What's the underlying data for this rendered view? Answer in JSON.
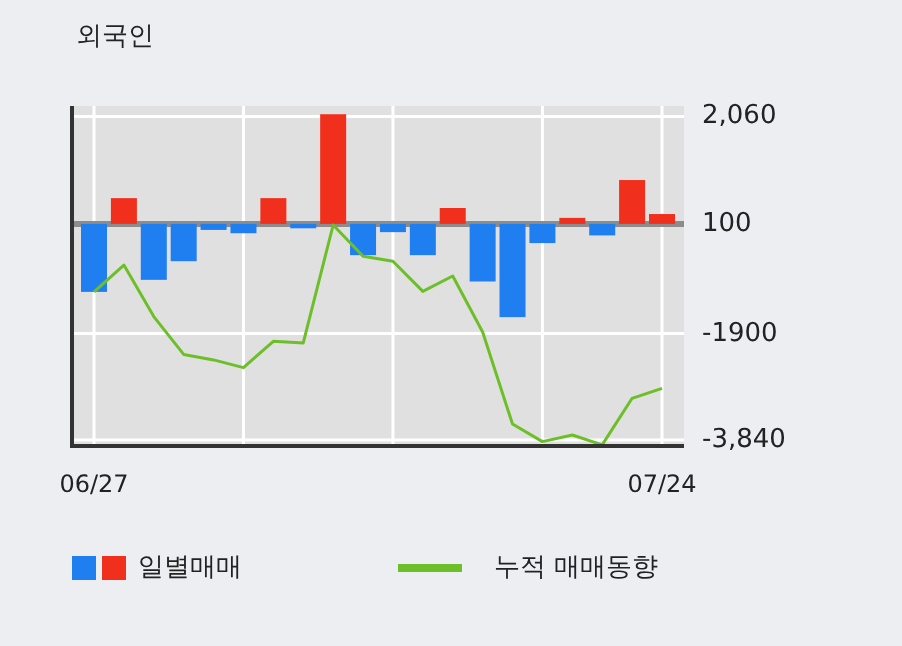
{
  "chart_data": {
    "type": "bar",
    "title": "외국인",
    "categories": [
      "06/27",
      null,
      null,
      null,
      null,
      null,
      null,
      null,
      null,
      null,
      null,
      null,
      null,
      null,
      null,
      null,
      null,
      null,
      null,
      "07/24"
    ],
    "series": [
      {
        "name": "일별매매",
        "values": [
          -1240,
          470,
          -1020,
          -680,
          -110,
          -170,
          470,
          -80,
          2000,
          -570,
          -150,
          -570,
          290,
          -1050,
          -1700,
          -350,
          110,
          -210,
          800,
          180
        ],
        "base": [
          100,
          100,
          100,
          100,
          100,
          100,
          100,
          100,
          100,
          100,
          100,
          100,
          100,
          100,
          100,
          100,
          100,
          100,
          100,
          100
        ],
        "colors": [
          "#1f7ff0",
          "#f0301c",
          "#1f7ff0",
          "#1f7ff0",
          "#1f7ff0",
          "#1f7ff0",
          "#f0301c",
          "#1f7ff0",
          "#f0301c",
          "#1f7ff0",
          "#1f7ff0",
          "#1f7ff0",
          "#f0301c",
          "#1f7ff0",
          "#1f7ff0",
          "#1f7ff0",
          "#f0301c",
          "#1f7ff0",
          "#f0301c",
          "#f0301c"
        ]
      },
      {
        "type": "line",
        "name": "누적 매매동향",
        "color": "#6dbf2a",
        "values": [
          -1140,
          -650,
          -1590,
          -2280,
          -2380,
          -2520,
          -2040,
          -2070,
          80,
          -490,
          -580,
          -1130,
          -850,
          -1870,
          -3550,
          -3870,
          -3750,
          -3930,
          -3080,
          -2900
        ]
      }
    ],
    "ylim": [
      -3950,
      2250
    ],
    "yticks": [
      {
        "value": 2060,
        "label": "2,060"
      },
      100,
      {
        "value": -1900,
        "label": "-1900"
      },
      {
        "value": -3840,
        "label": "-3,840"
      }
    ],
    "ref_lines": [
      {
        "axis": "y",
        "value": 100,
        "color": "#8c8c8c"
      }
    ],
    "grid": true,
    "legend": "bottom"
  }
}
